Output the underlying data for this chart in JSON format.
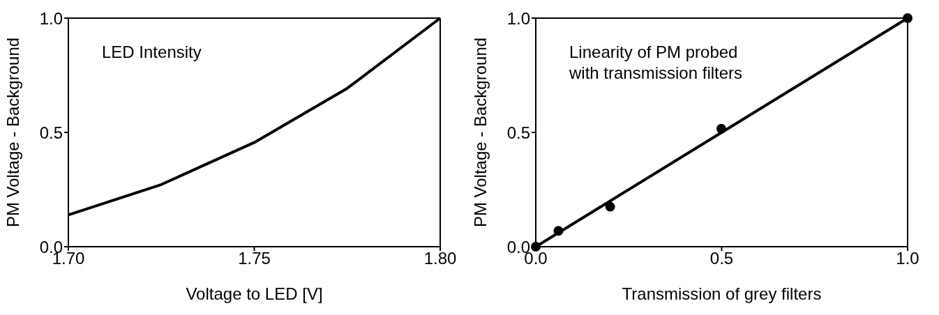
{
  "chart_data": [
    {
      "type": "line",
      "xlabel": "Voltage to LED [V]",
      "ylabel": "PM Voltage - Background",
      "annotations": [
        "LED Intensity"
      ],
      "x": [
        1.7,
        1.725,
        1.75,
        1.775,
        1.8
      ],
      "series": [
        {
          "color": "#000000",
          "values": [
            0.139,
            0.272,
            0.456,
            0.693,
            1.0
          ]
        }
      ],
      "xlim": [
        1.7,
        1.8
      ],
      "xticks": [
        {
          "value": 1.7,
          "label": "1.70"
        },
        {
          "value": 1.75,
          "label": "1.75"
        },
        {
          "value": 1.8,
          "label": "1.80"
        }
      ],
      "ylim": [
        0,
        1
      ],
      "yticks": [
        {
          "value": 0,
          "label": "0.0"
        },
        {
          "value": 0.5,
          "label": "0.5"
        },
        {
          "value": 1,
          "label": "1.0"
        }
      ],
      "marker": "none"
    },
    {
      "type": "scatter",
      "xlabel": "Transmission of grey filters",
      "ylabel": "PM Voltage - Background",
      "annotations": [
        "Linearity of PM probed with transmission filters"
      ],
      "series": [
        {
          "type": "scatter",
          "color": "#000000",
          "marker": "circle",
          "x": [
            0,
            0.061,
            0.2,
            0.499,
            1
          ],
          "values": [
            0,
            0.069,
            0.175,
            0.516,
            1
          ]
        },
        {
          "type": "line",
          "color": "#000000",
          "marker": "none",
          "x": [
            0,
            1
          ],
          "values": [
            0,
            1
          ]
        }
      ],
      "xlim": [
        0,
        1
      ],
      "xticks": [
        {
          "value": 0,
          "label": "0.0"
        },
        {
          "value": 0.5,
          "label": "0.5"
        },
        {
          "value": 1,
          "label": "1.0"
        }
      ],
      "ylim": [
        0,
        1
      ],
      "yticks": [
        {
          "value": 0,
          "label": "0.0"
        },
        {
          "value": 0.5,
          "label": "0.5"
        },
        {
          "value": 1,
          "label": "1.0"
        }
      ]
    }
  ]
}
